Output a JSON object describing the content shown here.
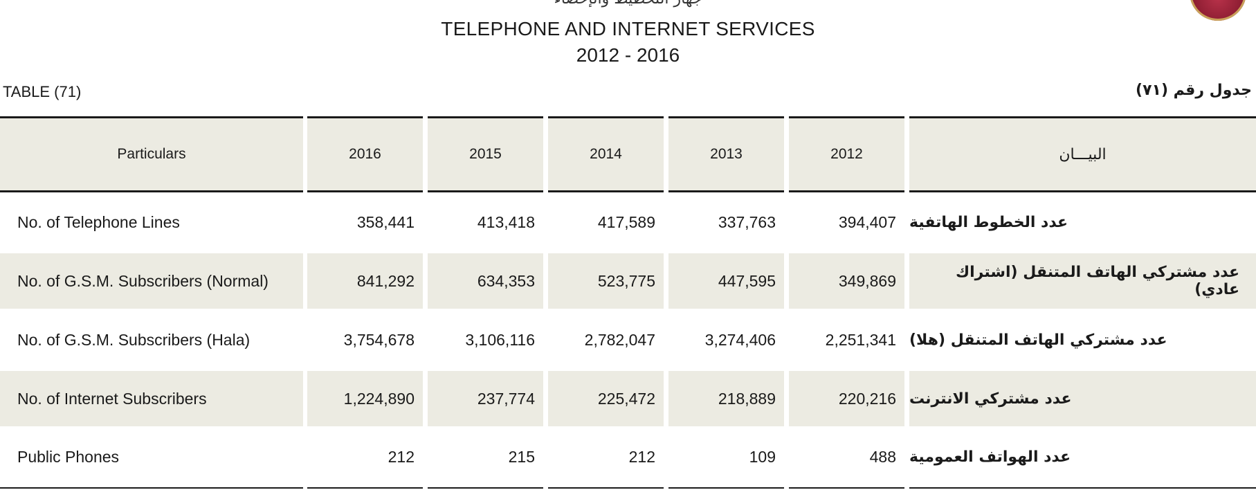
{
  "header": {
    "top_partial_text": "جهاز التخطيط والإحصاء",
    "title": "TELEPHONE AND INTERNET SERVICES",
    "subtitle": "2012 - 2016",
    "table_no_en": "TABLE (71)",
    "table_no_ar": "جدول رقم (٧١)"
  },
  "table": {
    "columns": {
      "particulars": "Particulars",
      "y2016": "2016",
      "y2015": "2015",
      "y2014": "2014",
      "y2013": "2013",
      "y2012": "2012",
      "particulars_ar": "البيـــان"
    },
    "rows": [
      {
        "label_en": "No. of Telephone Lines",
        "v2016": "358,441",
        "v2015": "413,418",
        "v2014": "417,589",
        "v2013": "337,763",
        "v2012": "394,407",
        "label_ar": "عدد الخطوط الهاتفية"
      },
      {
        "label_en": "No. of G.S.M. Subscribers (Normal)",
        "v2016": "841,292",
        "v2015": "634,353",
        "v2014": "523,775",
        "v2013": "447,595",
        "v2012": "349,869",
        "label_ar": "عدد مشتركي الهاتف المتنقل (اشتراك عادي)"
      },
      {
        "label_en": "No. of G.S.M. Subscribers (Hala)",
        "v2016": "3,754,678",
        "v2015": "3,106,116",
        "v2014": "2,782,047",
        "v2013": "3,274,406",
        "v2012": "2,251,341",
        "label_ar": "عدد مشتركي الهاتف المتنقل (هلا)"
      },
      {
        "label_en": "No. of Internet Subscribers",
        "v2016": "1,224,890",
        "v2015": "237,774",
        "v2014": "225,472",
        "v2013": "218,889",
        "v2012": "220,216",
        "label_ar": "عدد مشتركي الانترنت"
      },
      {
        "label_en": "Public Phones",
        "v2016": "212",
        "v2015": "215",
        "v2014": "212",
        "v2013": "109",
        "v2012": "488",
        "label_ar": "عدد الهواتف العمومية"
      }
    ]
  }
}
